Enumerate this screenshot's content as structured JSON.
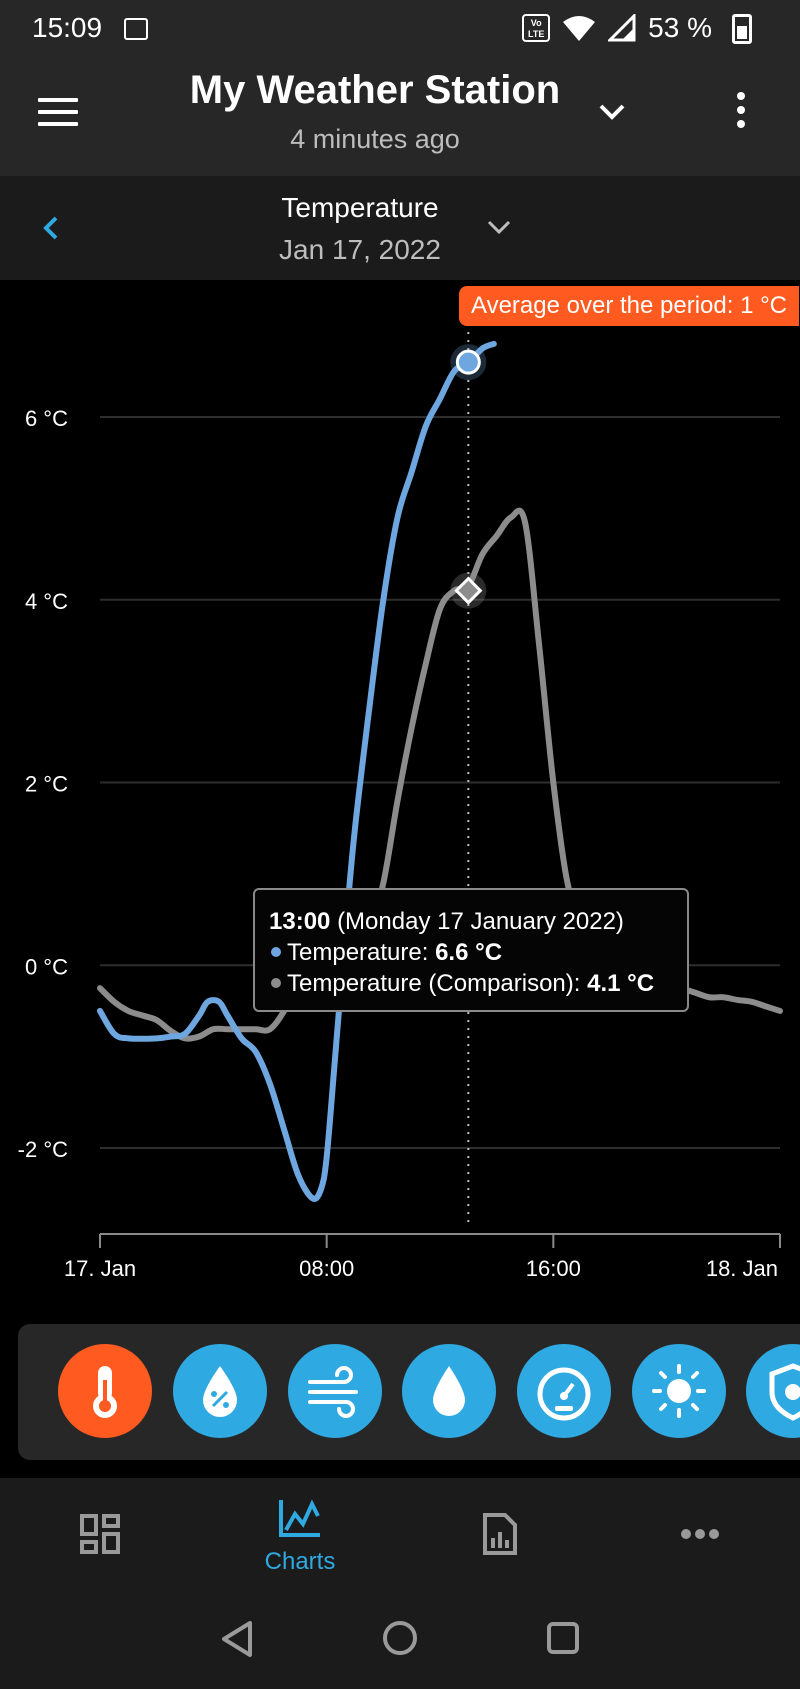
{
  "status_bar": {
    "time": "15:09",
    "volte_label": "Vo LTE",
    "battery_text": "53 %"
  },
  "header": {
    "title": "My Weather Station",
    "subtitle": "4 minutes ago"
  },
  "sub_header": {
    "metric": "Temperature",
    "date": "Jan 17, 2022"
  },
  "chart_data": {
    "type": "line",
    "x_unit": "hour of 17 Jan 2022",
    "xlim": [
      0,
      24
    ],
    "ylim": [
      -2.9,
      6.9
    ],
    "y_ticks": [
      {
        "value": 6,
        "label": "6 °C"
      },
      {
        "value": 4,
        "label": "4 °C"
      },
      {
        "value": 2,
        "label": "2 °C"
      },
      {
        "value": 0,
        "label": "0 °C"
      },
      {
        "value": -2,
        "label": "-2 °C"
      }
    ],
    "x_ticks": [
      {
        "value": 0,
        "label": "17. Jan"
      },
      {
        "value": 8,
        "label": "08:00"
      },
      {
        "value": 16,
        "label": "16:00"
      },
      {
        "value": 24,
        "label": "18. Jan"
      }
    ],
    "grid": true,
    "series": [
      {
        "name": "Temperature",
        "color": "#6ea6e0",
        "x": [
          0,
          0.5,
          1,
          2,
          2.5,
          3,
          3.5,
          3.8,
          4.2,
          4.5,
          5,
          5.5,
          6,
          6.5,
          7,
          7.5,
          7.8,
          8,
          8.3,
          8.7,
          9,
          9.5,
          10,
          10.5,
          11,
          11.5,
          12,
          12.5,
          13,
          13.5,
          13.9
        ],
        "y": [
          -0.5,
          -0.75,
          -0.8,
          -0.8,
          -0.78,
          -0.75,
          -0.55,
          -0.4,
          -0.4,
          -0.55,
          -0.8,
          -0.95,
          -1.3,
          -1.8,
          -2.3,
          -2.55,
          -2.45,
          -2.1,
          -1.0,
          0.5,
          1.5,
          2.8,
          4.0,
          4.9,
          5.4,
          5.9,
          6.2,
          6.5,
          6.6,
          6.75,
          6.8
        ]
      },
      {
        "name": "Temperature (Comparison)",
        "color": "#8c8c8c",
        "x": [
          0,
          0.5,
          1,
          1.5,
          2,
          2.5,
          3,
          3.5,
          4,
          4.5,
          5,
          5.5,
          6,
          6.5,
          7,
          7.5,
          8,
          8.5,
          9,
          9.5,
          10,
          10.5,
          11,
          11.5,
          12,
          12.5,
          13,
          13.5,
          14,
          14.5,
          15,
          15.5,
          16,
          16.5,
          17,
          17.5,
          18,
          18.5,
          19,
          19.5,
          20,
          20.5,
          21,
          21.5,
          22,
          22.5,
          23,
          23.5,
          24
        ],
        "y": [
          -0.25,
          -0.4,
          -0.5,
          -0.55,
          -0.6,
          -0.72,
          -0.8,
          -0.78,
          -0.7,
          -0.7,
          -0.7,
          -0.7,
          -0.7,
          -0.5,
          -0.2,
          0.0,
          0.1,
          0.15,
          0.2,
          0.4,
          0.9,
          1.8,
          2.6,
          3.3,
          3.9,
          4.1,
          4.15,
          4.5,
          4.7,
          4.9,
          4.85,
          3.5,
          2.0,
          0.9,
          0.5,
          0.3,
          0.1,
          0.0,
          -0.1,
          -0.15,
          -0.2,
          -0.25,
          -0.3,
          -0.35,
          -0.35,
          -0.38,
          -0.4,
          -0.45,
          -0.5
        ]
      }
    ],
    "highlight": {
      "x": 13,
      "values": [
        6.6,
        4.1
      ]
    },
    "annotation": "Average over the period: 1 °C",
    "tooltip": {
      "time": "13:00",
      "date": "(Monday 17 January 2022)",
      "row1_label": "Temperature:",
      "row1_value": "6.6 °C",
      "row2_label": "Temperature (Comparison):",
      "row2_value": "4.1 °C"
    }
  },
  "metric_bar": {
    "items": [
      {
        "icon": "thermometer-icon",
        "active": true
      },
      {
        "icon": "humidity-icon",
        "active": false
      },
      {
        "icon": "wind-icon",
        "active": false
      },
      {
        "icon": "rain-drop-icon",
        "active": false
      },
      {
        "icon": "pressure-gauge-icon",
        "active": false
      },
      {
        "icon": "sun-icon",
        "active": false
      },
      {
        "icon": "uv-shield-icon",
        "active": false
      }
    ]
  },
  "bottom_nav": {
    "charts_label": "Charts"
  },
  "colors": {
    "accent": "#2fa9e1",
    "active": "#ff5a1f",
    "series_primary": "#6ea6e0",
    "series_comparison": "#8c8c8c"
  }
}
